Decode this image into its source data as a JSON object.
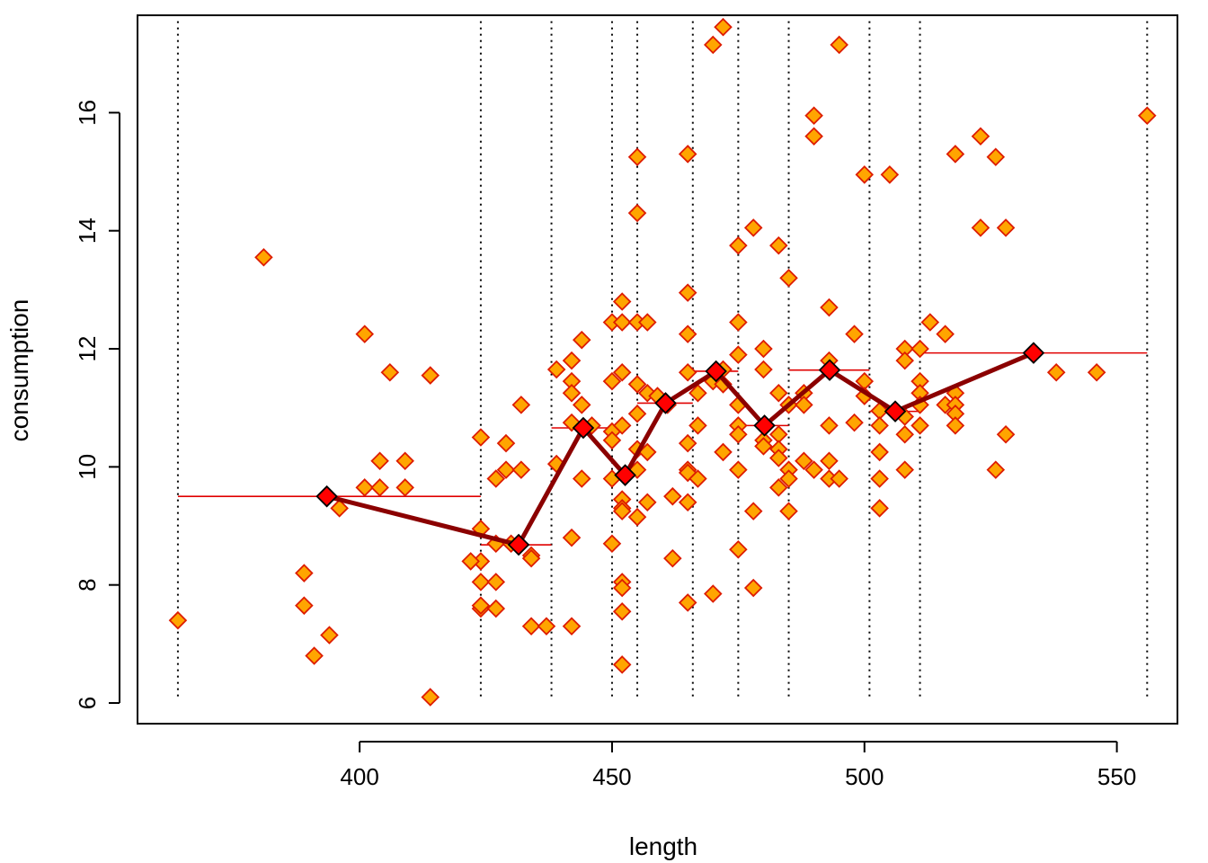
{
  "chart_data": {
    "type": "scatter",
    "title": "",
    "xlabel": "length",
    "ylabel": "consumption",
    "xlim": [
      356,
      562
    ],
    "ylim": [
      5.65,
      17.65
    ],
    "x_ticks": [
      400,
      450,
      500,
      550
    ],
    "y_ticks": [
      6,
      8,
      10,
      12,
      14,
      16
    ],
    "x_tick_labels": [
      "400",
      "450",
      "500",
      "550"
    ],
    "y_tick_labels": [
      "6",
      "8",
      "10",
      "12",
      "14",
      "16"
    ],
    "grid": false,
    "legend": "none",
    "colors": {
      "point_fill": "#FFA500",
      "point_stroke": "#DD1C00",
      "bin_line": "#E00000",
      "mean_line": "#8B0000",
      "mean_point_fill": "#FF0000",
      "mean_point_stroke": "#000000",
      "boundary": "#000000"
    },
    "bin_boundaries": [
      364,
      424,
      438,
      450,
      455,
      466,
      475,
      485,
      501,
      511,
      556
    ],
    "bins": [
      {
        "x_start": 364,
        "x_end": 424,
        "mean_x": 393.5,
        "mean_y": 9.5
      },
      {
        "x_start": 424,
        "x_end": 438,
        "mean_x": 431.5,
        "mean_y": 8.68
      },
      {
        "x_start": 438,
        "x_end": 450,
        "mean_x": 444.3,
        "mean_y": 10.66
      },
      {
        "x_start": 450,
        "x_end": 455,
        "mean_x": 452.6,
        "mean_y": 9.86
      },
      {
        "x_start": 455,
        "x_end": 466,
        "mean_x": 460.6,
        "mean_y": 11.08
      },
      {
        "x_start": 466,
        "x_end": 475,
        "mean_x": 470.6,
        "mean_y": 11.62
      },
      {
        "x_start": 475,
        "x_end": 485,
        "mean_x": 480.2,
        "mean_y": 10.7
      },
      {
        "x_start": 485,
        "x_end": 501,
        "mean_x": 493.1,
        "mean_y": 11.64
      },
      {
        "x_start": 501,
        "x_end": 511,
        "mean_x": 506.1,
        "mean_y": 10.94
      },
      {
        "x_start": 511,
        "x_end": 556,
        "mean_x": 533.5,
        "mean_y": 11.93
      }
    ],
    "points": [
      [
        364,
        7.4
      ],
      [
        381,
        13.55
      ],
      [
        389,
        8.2
      ],
      [
        389,
        7.65
      ],
      [
        391,
        6.8
      ],
      [
        394,
        7.15
      ],
      [
        396,
        9.3
      ],
      [
        401,
        12.25
      ],
      [
        401,
        9.65
      ],
      [
        404,
        10.1
      ],
      [
        404,
        9.65
      ],
      [
        406,
        11.6
      ],
      [
        409,
        10.1
      ],
      [
        409,
        9.65
      ],
      [
        414,
        11.55
      ],
      [
        414,
        6.1
      ],
      [
        424,
        10.5
      ],
      [
        424,
        8.95
      ],
      [
        424,
        8.4
      ],
      [
        424,
        8.05
      ],
      [
        424,
        7.6
      ],
      [
        424,
        7.65
      ],
      [
        422,
        8.4
      ],
      [
        427,
        9.8
      ],
      [
        427,
        8.7
      ],
      [
        427,
        8.05
      ],
      [
        427,
        7.6
      ],
      [
        429,
        10.4
      ],
      [
        429,
        9.95
      ],
      [
        430,
        8.7
      ],
      [
        432,
        11.05
      ],
      [
        432,
        9.95
      ],
      [
        434,
        8.5
      ],
      [
        434,
        8.45
      ],
      [
        434,
        7.3
      ],
      [
        437,
        7.3
      ],
      [
        439,
        11.65
      ],
      [
        439,
        10.05
      ],
      [
        442,
        11.8
      ],
      [
        442,
        11.45
      ],
      [
        442,
        11.25
      ],
      [
        442,
        10.75
      ],
      [
        442,
        8.8
      ],
      [
        442,
        7.3
      ],
      [
        444,
        12.15
      ],
      [
        444,
        11.05
      ],
      [
        444,
        9.8
      ],
      [
        446,
        10.7
      ],
      [
        450,
        12.45
      ],
      [
        450,
        11.45
      ],
      [
        450,
        10.6
      ],
      [
        450,
        10.45
      ],
      [
        450,
        9.8
      ],
      [
        450,
        8.7
      ],
      [
        452,
        12.8
      ],
      [
        452,
        12.45
      ],
      [
        452,
        11.6
      ],
      [
        452,
        10.7
      ],
      [
        452,
        9.45
      ],
      [
        452,
        9.3
      ],
      [
        452,
        9.25
      ],
      [
        452,
        8.05
      ],
      [
        452,
        7.95
      ],
      [
        452,
        7.55
      ],
      [
        452,
        6.65
      ],
      [
        455,
        15.25
      ],
      [
        455,
        14.3
      ],
      [
        455,
        12.45
      ],
      [
        455,
        11.4
      ],
      [
        455,
        10.9
      ],
      [
        455,
        10.3
      ],
      [
        455,
        9.95
      ],
      [
        455,
        9.15
      ],
      [
        457,
        12.45
      ],
      [
        457,
        11.25
      ],
      [
        457,
        10.25
      ],
      [
        457,
        9.4
      ],
      [
        459,
        11.2
      ],
      [
        461,
        11.05
      ],
      [
        462,
        9.5
      ],
      [
        462,
        8.45
      ],
      [
        465,
        15.3
      ],
      [
        465,
        12.95
      ],
      [
        465,
        12.25
      ],
      [
        465,
        11.6
      ],
      [
        465,
        10.4
      ],
      [
        465,
        9.95
      ],
      [
        465,
        9.9
      ],
      [
        465,
        9.4
      ],
      [
        465,
        7.7
      ],
      [
        467,
        11.25
      ],
      [
        467,
        10.7
      ],
      [
        467,
        9.8
      ],
      [
        470,
        17.15
      ],
      [
        470,
        11.45
      ],
      [
        470,
        7.85
      ],
      [
        472,
        17.45
      ],
      [
        472,
        11.65
      ],
      [
        472,
        11.4
      ],
      [
        472,
        10.25
      ],
      [
        475,
        13.75
      ],
      [
        475,
        12.45
      ],
      [
        475,
        11.9
      ],
      [
        475,
        11.05
      ],
      [
        475,
        10.7
      ],
      [
        475,
        10.55
      ],
      [
        475,
        9.95
      ],
      [
        475,
        8.6
      ],
      [
        478,
        14.05
      ],
      [
        478,
        9.25
      ],
      [
        478,
        7.95
      ],
      [
        480,
        12.0
      ],
      [
        480,
        11.65
      ],
      [
        480,
        10.45
      ],
      [
        480,
        10.35
      ],
      [
        480,
        10.7
      ],
      [
        483,
        13.75
      ],
      [
        483,
        11.25
      ],
      [
        483,
        10.55
      ],
      [
        483,
        10.3
      ],
      [
        483,
        10.15
      ],
      [
        483,
        9.65
      ],
      [
        485,
        13.2
      ],
      [
        485,
        11.05
      ],
      [
        485,
        9.95
      ],
      [
        485,
        9.8
      ],
      [
        485,
        9.25
      ],
      [
        488,
        11.25
      ],
      [
        488,
        11.05
      ],
      [
        488,
        10.1
      ],
      [
        490,
        15.95
      ],
      [
        490,
        15.6
      ],
      [
        490,
        9.95
      ],
      [
        493,
        12.7
      ],
      [
        493,
        11.8
      ],
      [
        493,
        10.7
      ],
      [
        493,
        10.1
      ],
      [
        493,
        9.8
      ],
      [
        495,
        17.15
      ],
      [
        495,
        9.8
      ],
      [
        498,
        12.25
      ],
      [
        498,
        10.75
      ],
      [
        500,
        14.95
      ],
      [
        500,
        11.45
      ],
      [
        500,
        11.2
      ],
      [
        503,
        10.95
      ],
      [
        503,
        10.7
      ],
      [
        503,
        10.25
      ],
      [
        503,
        9.8
      ],
      [
        503,
        9.3
      ],
      [
        505,
        14.95
      ],
      [
        508,
        12.0
      ],
      [
        508,
        11.8
      ],
      [
        508,
        10.85
      ],
      [
        508,
        10.55
      ],
      [
        508,
        9.95
      ],
      [
        511,
        12.0
      ],
      [
        511,
        11.45
      ],
      [
        511,
        11.25
      ],
      [
        511,
        11.05
      ],
      [
        511,
        10.7
      ],
      [
        513,
        12.45
      ],
      [
        516,
        12.25
      ],
      [
        516,
        11.05
      ],
      [
        518,
        15.3
      ],
      [
        518,
        11.25
      ],
      [
        518,
        11.05
      ],
      [
        518,
        10.9
      ],
      [
        518,
        10.7
      ],
      [
        523,
        15.6
      ],
      [
        523,
        14.05
      ],
      [
        526,
        15.25
      ],
      [
        526,
        9.95
      ],
      [
        528,
        14.05
      ],
      [
        528,
        10.55
      ],
      [
        538,
        11.6
      ],
      [
        546,
        11.6
      ],
      [
        556,
        15.95
      ]
    ]
  }
}
